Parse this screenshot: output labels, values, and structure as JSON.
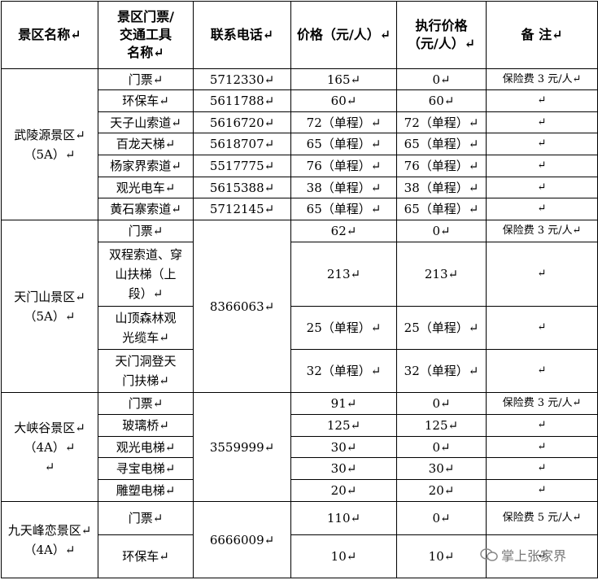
{
  "table": {
    "header": [
      "景区名称↵",
      "景区门票/\n交通工具\n名称↵",
      "联系电话↵",
      "价格（元/人）↵",
      "执行价格\n（元/人）↵",
      "备  注↵"
    ],
    "groups": [
      {
        "name": "武陵源景区↵\n（5A）↵",
        "items": [
          {
            "ticket": "门票↵",
            "phone": "5712330↵",
            "price": "165↵",
            "exec_price": "0↵",
            "note": "保险费 3 元/人↵"
          },
          {
            "ticket": "环保车↵",
            "phone": "5611788↵",
            "price": "60↵",
            "exec_price": "60↵",
            "note": "↵"
          },
          {
            "ticket": "天子山索道↵",
            "phone": "5616720↵",
            "price": "72（单程）↵",
            "exec_price": "72（单程）↵",
            "note": "↵"
          },
          {
            "ticket": "百龙天梯↵",
            "phone": "5618707↵",
            "price": "65（单程）↵",
            "exec_price": "65（单程）↵",
            "note": "↵"
          },
          {
            "ticket": "杨家界索道↵",
            "phone": "5517775↵",
            "price": "76（单程）↵",
            "exec_price": "76（单程）↵",
            "note": "↵"
          },
          {
            "ticket": "观光电车↵",
            "phone": "5615388↵",
            "price": "38（单程）↵",
            "exec_price": "38（单程）↵",
            "note": "↵"
          },
          {
            "ticket": "黄石寨索道↵",
            "phone": "5712145↵",
            "price": "65（单程）↵",
            "exec_price": "65（单程）↵",
            "note": "↵"
          }
        ]
      },
      {
        "name": "天门山景区↵\n（5A）↵",
        "phone": "8366063↵",
        "items": [
          {
            "ticket": "门票↵",
            "price": "62↵",
            "exec_price": "0↵",
            "note": "保险费 3 元/人↵"
          },
          {
            "ticket": "双程索道、穿\n山扶梯（上\n段）↵",
            "price": "213↵",
            "exec_price": "213↵",
            "note": "↵"
          },
          {
            "ticket": "山顶森林观\n光缆车↵",
            "price": "25（单程）↵",
            "exec_price": "25（单程）↵",
            "note": "↵"
          },
          {
            "ticket": "天门洞登天\n门扶梯↵",
            "price": "32（单程）↵",
            "exec_price": "32（单程）↵",
            "note": "↵"
          }
        ]
      },
      {
        "name": "大峡谷景区↵\n（4A）↵\n↵",
        "phone": "3559999↵",
        "items": [
          {
            "ticket": "门票↵",
            "price": "91↵",
            "exec_price": "0↵",
            "note": "保险费 3 元/人↵"
          },
          {
            "ticket": "玻璃桥↵",
            "price": "125↵",
            "exec_price": "125↵",
            "note": "↵"
          },
          {
            "ticket": "观光电梯↵",
            "price": "30↵",
            "exec_price": "0↵",
            "note": "↵"
          },
          {
            "ticket": "寻宝电梯↵",
            "price": "30↵",
            "exec_price": "30↵",
            "note": "↵"
          },
          {
            "ticket": "雕塑电梯↵",
            "price": "20↵",
            "exec_price": "20↵",
            "note": "↵"
          }
        ]
      },
      {
        "name": "九天峰恋景区↵\n（4A）↵",
        "phone": "6666009↵",
        "items": [
          {
            "ticket": "门票↵",
            "price": "110↵",
            "exec_price": "0↵",
            "note": "保险费 5 元/人↵"
          },
          {
            "ticket": "环保车↵",
            "price": "10↵",
            "exec_price": "10↵",
            "note": "↵"
          }
        ]
      }
    ],
    "watermark": "掌上张家界"
  }
}
